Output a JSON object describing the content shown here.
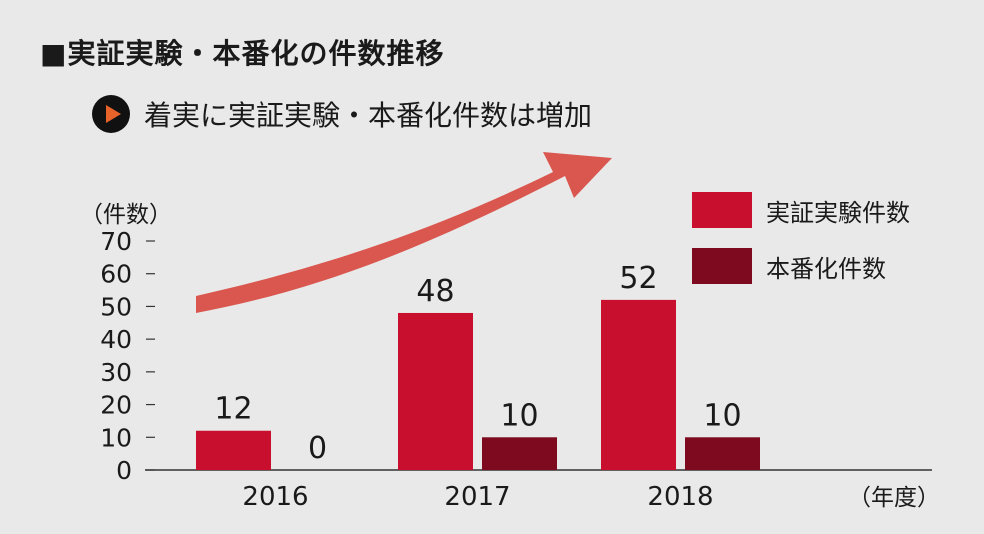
{
  "header": {
    "title": "■実証実験・本番化の件数推移",
    "subtitle": "着実に実証実験・本番化件数は増加"
  },
  "colors": {
    "series1": "#c8102e",
    "series2": "#7d0a1e",
    "arrow": "#d9574f",
    "axis": "#333333"
  },
  "icons": {
    "subtitle_marker": "play-circle-icon"
  },
  "chart_data": {
    "type": "bar",
    "categories": [
      "2016",
      "2017",
      "2018"
    ],
    "series": [
      {
        "name": "実証実験件数",
        "values": [
          12,
          48,
          52
        ]
      },
      {
        "name": "本番化件数",
        "values": [
          0,
          10,
          10
        ]
      }
    ],
    "title": "■実証実験・本番化の件数推移",
    "subtitle": "着実に実証実験・本番化件数は増加",
    "xlabel": "（年度）",
    "ylabel": "（件数）",
    "ylim": [
      0,
      70
    ],
    "yticks": [
      0,
      10,
      20,
      30,
      40,
      50,
      60,
      70
    ],
    "grid": false,
    "legend": "top-right",
    "data_labels": true,
    "annotation": "upward-trend-arrow"
  }
}
